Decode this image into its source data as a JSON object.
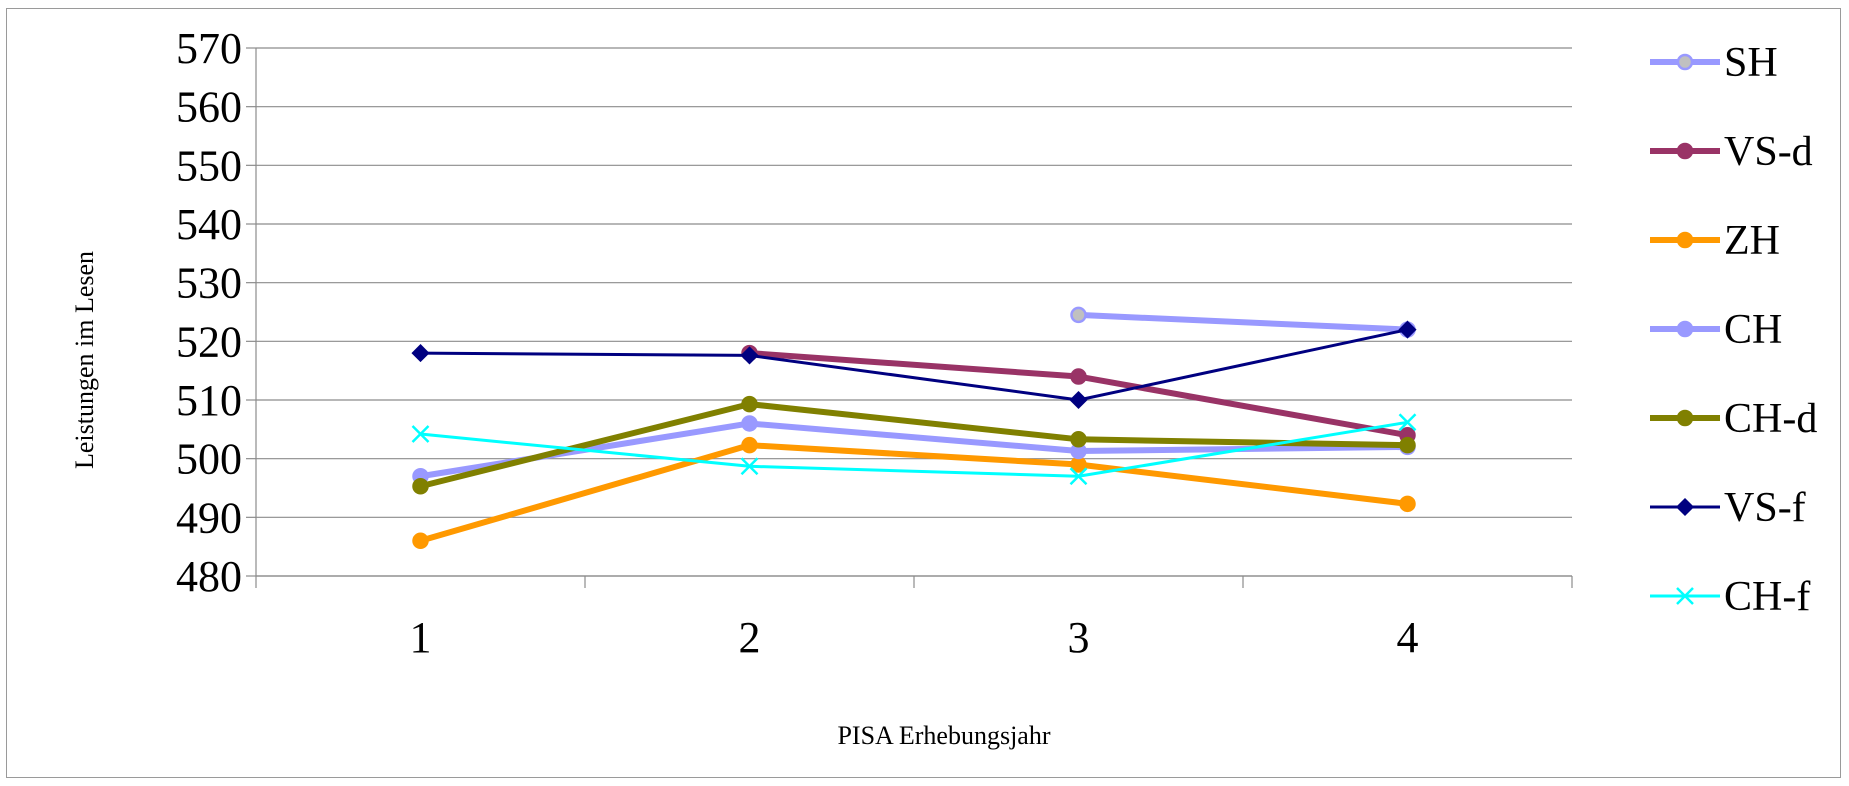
{
  "chart_data": {
    "type": "line",
    "title": "",
    "xlabel": "PISA Erhebungsjahr",
    "ylabel": "Leistungen im Lesen",
    "categories": [
      "1",
      "2",
      "3",
      "4"
    ],
    "y_ticks": [
      "480",
      "490",
      "500",
      "510",
      "520",
      "530",
      "540",
      "550",
      "560",
      "570"
    ],
    "ylim": [
      480,
      570
    ],
    "grid": "horizontal",
    "legend_position": "right",
    "series": [
      {
        "name": "SH",
        "values": [
          null,
          null,
          524.5,
          522
        ],
        "color": "#9999ff",
        "marker": "circle",
        "marker_fill": "#c0c0c0",
        "width": 6
      },
      {
        "name": "VS-d",
        "values": [
          null,
          518,
          514,
          504
        ],
        "color": "#993366",
        "marker": "circle",
        "marker_fill": "#993366",
        "width": 6
      },
      {
        "name": "ZH",
        "values": [
          486,
          502.3,
          499,
          492.3
        ],
        "color": "#ff9900",
        "marker": "circle",
        "marker_fill": "#ff9900",
        "width": 6
      },
      {
        "name": "CH",
        "values": [
          497,
          506,
          501.3,
          502
        ],
        "color": "#9999ff",
        "marker": "circle",
        "marker_fill": "#9999ff",
        "width": 6
      },
      {
        "name": "CH-d",
        "values": [
          495.3,
          509.3,
          503.3,
          502.3
        ],
        "color": "#808000",
        "marker": "circle",
        "marker_fill": "#808000",
        "width": 6
      },
      {
        "name": "VS-f",
        "values": [
          518,
          517.6,
          510,
          522
        ],
        "color": "#000080",
        "marker": "diamond",
        "marker_fill": "#000080",
        "width": 3
      },
      {
        "name": "CH-f",
        "values": [
          504.2,
          498.7,
          497,
          506.2
        ],
        "color": "#00ffff",
        "marker": "cross",
        "marker_fill": "#00ffff",
        "width": 3
      }
    ]
  }
}
